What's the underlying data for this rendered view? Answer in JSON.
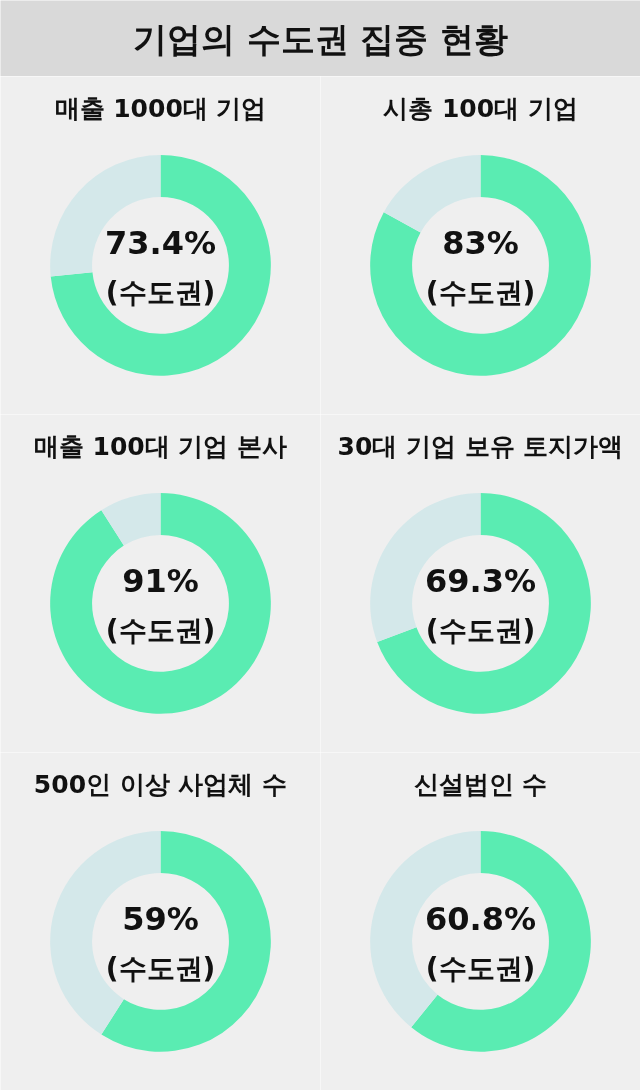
{
  "chart_data": [
    {
      "type": "donut",
      "title": "매출 1000대 기업",
      "annotations": [
        "기업의 수도권 집중 현황"
      ],
      "categories": [
        "(수도권)",
        null
      ],
      "values": [
        73.4,
        26.6
      ],
      "colors": [
        "#5aecb2",
        "#d4e8ea"
      ],
      "value_labels": [
        "73.4%",
        null
      ]
    },
    {
      "type": "donut",
      "title": "시총 100대 기업",
      "categories": [
        "(수도권)",
        null
      ],
      "values": [
        83,
        17
      ],
      "colors": [
        "#5aecb2",
        "#d4e8ea"
      ],
      "value_labels": [
        "83%",
        null
      ]
    },
    {
      "type": "donut",
      "title": "매출 100대 기업 본사",
      "categories": [
        "(수도권)",
        null
      ],
      "values": [
        91,
        9
      ],
      "colors": [
        "#5aecb2",
        "#d4e8ea"
      ],
      "value_labels": [
        "91%",
        null
      ]
    },
    {
      "type": "donut",
      "title": "30대 기업 보유 토지가액",
      "categories": [
        "(수도권)",
        null
      ],
      "values": [
        69.3,
        30.7
      ],
      "colors": [
        "#5aecb2",
        "#d4e8ea"
      ],
      "value_labels": [
        "69.3%",
        null
      ]
    },
    {
      "type": "donut",
      "title": "500인 이상 사업체 수",
      "categories": [
        "(수도권)",
        null
      ],
      "values": [
        59,
        41
      ],
      "colors": [
        "#5aecb2",
        "#d4e8ea"
      ],
      "value_labels": [
        "59%",
        null
      ]
    },
    {
      "type": "donut",
      "title": "신설법인 수",
      "categories": [
        "(수도권)",
        null
      ],
      "values": [
        60.8,
        39.2
      ],
      "colors": [
        "#5aecb2",
        "#d4e8ea"
      ],
      "value_labels": [
        "60.8%",
        null
      ]
    }
  ]
}
